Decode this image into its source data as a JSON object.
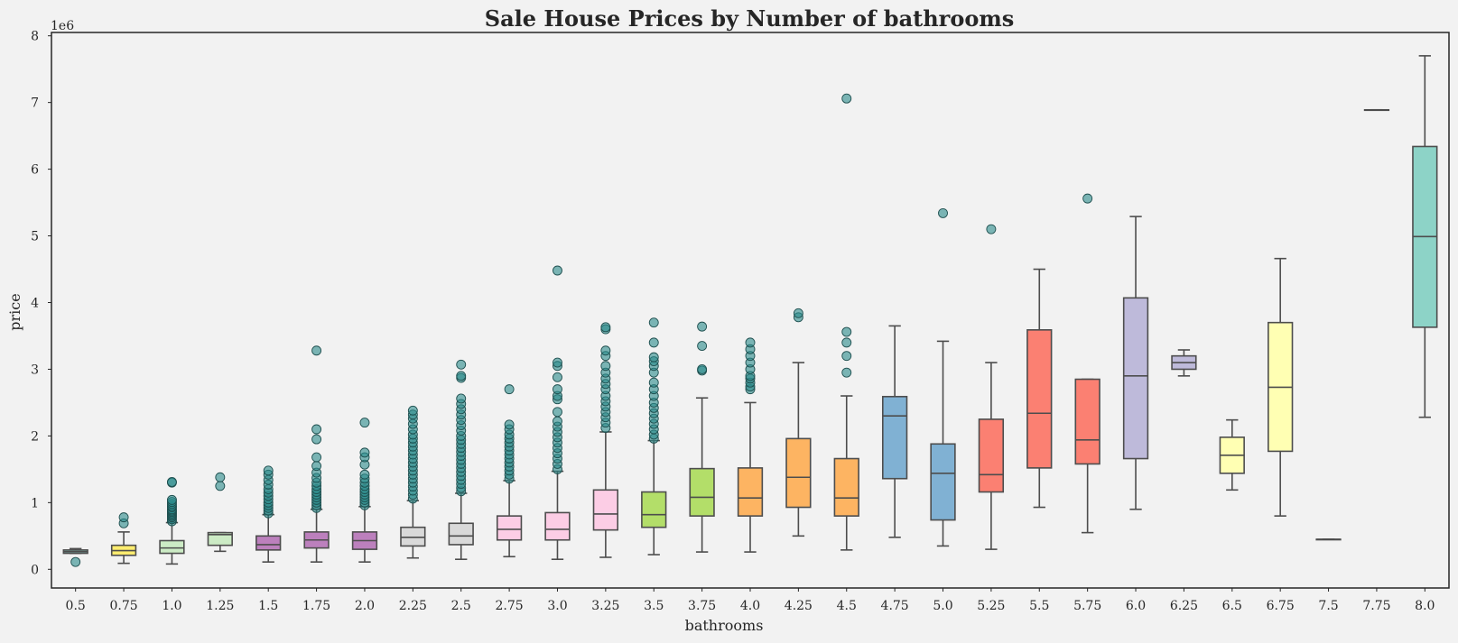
{
  "chart_data": {
    "type": "box",
    "title": "Sale House Prices by Number of bathrooms",
    "xlabel": "bathrooms",
    "ylabel": "price",
    "y_scale_label": "1e6",
    "ylim": [
      -0.28,
      8.05
    ],
    "yticks": [
      0,
      1,
      2,
      3,
      4,
      5,
      6,
      7,
      8
    ],
    "grid": false,
    "outlier_color": "#2a8a8a",
    "categories": [
      "0.5",
      "0.75",
      "1.0",
      "1.25",
      "1.5",
      "1.75",
      "2.0",
      "2.25",
      "2.5",
      "2.75",
      "3.0",
      "3.25",
      "3.5",
      "3.75",
      "4.0",
      "4.25",
      "4.5",
      "4.75",
      "5.0",
      "5.25",
      "5.5",
      "5.75",
      "6.0",
      "6.25",
      "6.5",
      "6.75",
      "7.5",
      "7.75",
      "8.0"
    ],
    "boxes": [
      {
        "x": "0.5",
        "color": "#8dd3c7",
        "whislo": 0.24,
        "q1": 0.24,
        "med": 0.265,
        "q3": 0.29,
        "whishi": 0.31,
        "fliers": [
          0.11
        ]
      },
      {
        "x": "0.75",
        "color": "#ffed6f",
        "whislo": 0.09,
        "q1": 0.21,
        "med": 0.28,
        "q3": 0.36,
        "whishi": 0.56,
        "fliers": [
          0.69,
          0.78
        ]
      },
      {
        "x": "1.0",
        "color": "#ccebc5",
        "whislo": 0.08,
        "q1": 0.24,
        "med": 0.32,
        "q3": 0.43,
        "whishi": 0.7,
        "fliers": [
          0.72,
          0.75,
          0.78,
          0.8,
          0.82,
          0.84,
          0.86,
          0.88,
          0.9,
          0.93,
          0.95,
          0.98,
          1.01,
          1.04,
          1.3,
          1.31
        ]
      },
      {
        "x": "1.25",
        "color": "#ccebc5",
        "whislo": 0.27,
        "q1": 0.36,
        "med": 0.52,
        "q3": 0.55,
        "whishi": 0.55,
        "fliers": [
          1.25,
          1.38
        ]
      },
      {
        "x": "1.5",
        "color": "#bc80bd",
        "whislo": 0.11,
        "q1": 0.29,
        "med": 0.37,
        "q3": 0.5,
        "whishi": 0.82,
        "fliers": [
          0.84,
          0.88,
          0.92,
          0.96,
          1.0,
          1.05,
          1.1,
          1.15,
          1.2,
          1.27,
          1.34,
          1.42,
          1.48
        ]
      },
      {
        "x": "1.75",
        "color": "#bc80bd",
        "whislo": 0.11,
        "q1": 0.32,
        "med": 0.44,
        "q3": 0.56,
        "whishi": 0.9,
        "fliers": [
          0.92,
          0.96,
          1.0,
          1.04,
          1.08,
          1.12,
          1.16,
          1.2,
          1.25,
          1.3,
          1.37,
          1.45,
          1.55,
          1.68,
          1.95,
          2.1,
          3.28
        ]
      },
      {
        "x": "2.0",
        "color": "#bc80bd",
        "whislo": 0.11,
        "q1": 0.3,
        "med": 0.43,
        "q3": 0.56,
        "whishi": 0.94,
        "fliers": [
          0.96,
          1.0,
          1.04,
          1.08,
          1.12,
          1.16,
          1.2,
          1.25,
          1.3,
          1.36,
          1.42,
          1.57,
          1.68,
          1.75,
          2.2
        ]
      },
      {
        "x": "2.25",
        "color": "#d9d9d9",
        "whislo": 0.17,
        "q1": 0.35,
        "med": 0.48,
        "q3": 0.63,
        "whishi": 1.03,
        "fliers": [
          1.06,
          1.12,
          1.18,
          1.24,
          1.3,
          1.36,
          1.42,
          1.48,
          1.54,
          1.6,
          1.66,
          1.72,
          1.78,
          1.84,
          1.9,
          1.96,
          2.02,
          2.1,
          2.18,
          2.26,
          2.32,
          2.38
        ]
      },
      {
        "x": "2.5",
        "color": "#d9d9d9",
        "whislo": 0.15,
        "q1": 0.37,
        "med": 0.5,
        "q3": 0.69,
        "whishi": 1.14,
        "fliers": [
          1.17,
          1.22,
          1.28,
          1.34,
          1.4,
          1.46,
          1.52,
          1.58,
          1.64,
          1.7,
          1.76,
          1.82,
          1.88,
          1.94,
          2.0,
          2.08,
          2.16,
          2.24,
          2.32,
          2.4,
          2.48,
          2.56,
          2.87,
          2.9,
          3.07
        ]
      },
      {
        "x": "2.75",
        "color": "#fccde5",
        "whislo": 0.19,
        "q1": 0.44,
        "med": 0.6,
        "q3": 0.8,
        "whishi": 1.33,
        "fliers": [
          1.36,
          1.42,
          1.48,
          1.54,
          1.6,
          1.66,
          1.72,
          1.78,
          1.84,
          1.9,
          1.96,
          2.02,
          2.1,
          2.17,
          2.7
        ]
      },
      {
        "x": "3.0",
        "color": "#fccde5",
        "whislo": 0.15,
        "q1": 0.44,
        "med": 0.6,
        "q3": 0.85,
        "whishi": 1.47,
        "fliers": [
          1.5,
          1.58,
          1.66,
          1.74,
          1.82,
          1.9,
          1.98,
          2.06,
          2.14,
          2.22,
          2.36,
          2.55,
          2.6,
          2.7,
          2.88,
          3.05,
          3.1,
          4.48
        ]
      },
      {
        "x": "3.25",
        "color": "#fccde5",
        "whislo": 0.18,
        "q1": 0.59,
        "med": 0.83,
        "q3": 1.19,
        "whishi": 2.06,
        "fliers": [
          2.12,
          2.2,
          2.28,
          2.36,
          2.44,
          2.52,
          2.6,
          2.7,
          2.78,
          2.86,
          2.95,
          3.05,
          3.2,
          3.28,
          3.6,
          3.63
        ]
      },
      {
        "x": "3.5",
        "color": "#b3de69",
        "whislo": 0.22,
        "q1": 0.63,
        "med": 0.82,
        "q3": 1.16,
        "whishi": 1.93,
        "fliers": [
          1.96,
          2.02,
          2.1,
          2.18,
          2.26,
          2.34,
          2.42,
          2.5,
          2.6,
          2.7,
          2.8,
          2.95,
          3.05,
          3.12,
          3.18,
          3.4,
          3.7
        ]
      },
      {
        "x": "3.75",
        "color": "#b3de69",
        "whislo": 0.26,
        "q1": 0.8,
        "med": 1.08,
        "q3": 1.51,
        "whishi": 2.57,
        "fliers": [
          2.98,
          3.0,
          3.35,
          3.64
        ]
      },
      {
        "x": "4.0",
        "color": "#fdb462",
        "whislo": 0.26,
        "q1": 0.8,
        "med": 1.07,
        "q3": 1.52,
        "whishi": 2.5,
        "fliers": [
          2.7,
          2.74,
          2.8,
          2.86,
          2.9,
          3.0,
          3.1,
          3.2,
          3.3,
          3.4
        ]
      },
      {
        "x": "4.25",
        "color": "#fdb462",
        "whislo": 0.5,
        "q1": 0.93,
        "med": 1.38,
        "q3": 1.96,
        "whishi": 3.1,
        "fliers": [
          3.78,
          3.84
        ]
      },
      {
        "x": "4.5",
        "color": "#fdb462",
        "whislo": 0.29,
        "q1": 0.8,
        "med": 1.07,
        "q3": 1.66,
        "whishi": 2.6,
        "fliers": [
          2.95,
          3.2,
          3.4,
          3.56,
          7.06
        ]
      },
      {
        "x": "4.75",
        "color": "#80b1d3",
        "whislo": 0.48,
        "q1": 1.36,
        "med": 2.3,
        "q3": 2.59,
        "whishi": 3.65,
        "fliers": []
      },
      {
        "x": "5.0",
        "color": "#80b1d3",
        "whislo": 0.35,
        "q1": 0.74,
        "med": 1.44,
        "q3": 1.88,
        "whishi": 3.42,
        "fliers": [
          5.34
        ]
      },
      {
        "x": "5.25",
        "color": "#fb8072",
        "whislo": 0.3,
        "q1": 1.16,
        "med": 1.42,
        "q3": 2.25,
        "whishi": 3.1,
        "fliers": [
          5.1
        ]
      },
      {
        "x": "5.5",
        "color": "#fb8072",
        "whislo": 0.93,
        "q1": 1.52,
        "med": 2.34,
        "q3": 3.59,
        "whishi": 4.5,
        "fliers": []
      },
      {
        "x": "5.75",
        "color": "#fb8072",
        "whislo": 0.55,
        "q1": 1.58,
        "med": 1.94,
        "q3": 2.85,
        "whishi": 2.85,
        "fliers": [
          5.56
        ]
      },
      {
        "x": "6.0",
        "color": "#bebada",
        "whislo": 0.9,
        "q1": 1.66,
        "med": 2.9,
        "q3": 4.07,
        "whishi": 5.29,
        "fliers": []
      },
      {
        "x": "6.25",
        "color": "#bebada",
        "whislo": 2.9,
        "q1": 3.0,
        "med": 3.1,
        "q3": 3.2,
        "whishi": 3.29,
        "fliers": []
      },
      {
        "x": "6.5",
        "color": "#ffffb3",
        "whislo": 1.19,
        "q1": 1.44,
        "med": 1.71,
        "q3": 1.98,
        "whishi": 2.24,
        "fliers": []
      },
      {
        "x": "6.75",
        "color": "#ffffb3",
        "whislo": 0.8,
        "q1": 1.77,
        "med": 2.73,
        "q3": 3.7,
        "whishi": 4.66,
        "fliers": []
      },
      {
        "x": "7.5",
        "color": "#8dd3c7",
        "whislo": 0.45,
        "q1": 0.45,
        "med": 0.45,
        "q3": 0.45,
        "whishi": 0.45,
        "fliers": []
      },
      {
        "x": "7.75",
        "color": "#8dd3c7",
        "whislo": 6.89,
        "q1": 6.89,
        "med": 6.89,
        "q3": 6.89,
        "whishi": 6.89,
        "fliers": []
      },
      {
        "x": "8.0",
        "color": "#8dd3c7",
        "whislo": 2.28,
        "q1": 3.63,
        "med": 4.99,
        "q3": 6.34,
        "whishi": 7.7,
        "fliers": []
      }
    ]
  }
}
